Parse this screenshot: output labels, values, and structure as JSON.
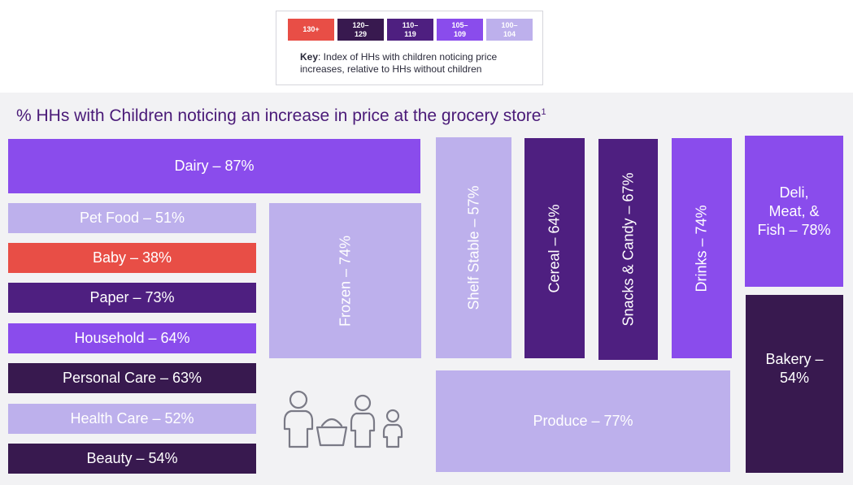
{
  "key": {
    "label": "Key",
    "description": ": Index of HHs with children noticing price increases, relative to HHs without children",
    "swatches": [
      {
        "label": "130+",
        "color": "#e84e46"
      },
      {
        "label": "120–\n129",
        "color": "#38194f"
      },
      {
        "label": "110–\n119",
        "color": "#4e1f80"
      },
      {
        "label": "105–\n109",
        "color": "#8a4cec"
      },
      {
        "label": "100–\n104",
        "color": "#bdb0ec"
      }
    ]
  },
  "chart_data": {
    "type": "treemap",
    "title": "% HHs with Children noticing an increase in price at the grocery store",
    "title_sup": "1",
    "unit": "%",
    "items": [
      {
        "name": "Dairy",
        "label": "Dairy – 87%",
        "value": 87,
        "index_band": "105–109",
        "color": "#8a4cec"
      },
      {
        "name": "Pet Food",
        "label": "Pet Food – 51%",
        "value": 51,
        "index_band": "100–104",
        "color": "#bdb0ec"
      },
      {
        "name": "Baby",
        "label": "Baby – 38%",
        "value": 38,
        "index_band": "130+",
        "color": "#e84e46"
      },
      {
        "name": "Paper",
        "label": "Paper – 73%",
        "value": 73,
        "index_band": "110–119",
        "color": "#4e1f80"
      },
      {
        "name": "Household",
        "label": "Household – 64%",
        "value": 64,
        "index_band": "105–109",
        "color": "#8a4cec"
      },
      {
        "name": "Personal Care",
        "label": "Personal Care – 63%",
        "value": 63,
        "index_band": "120–129",
        "color": "#38194f"
      },
      {
        "name": "Health Care",
        "label": "Health Care – 52%",
        "value": 52,
        "index_band": "100–104",
        "color": "#bdb0ec"
      },
      {
        "name": "Beauty",
        "label": "Beauty – 54%",
        "value": 54,
        "index_band": "120–129",
        "color": "#38194f"
      },
      {
        "name": "Frozen",
        "label": "Frozen – 74%",
        "value": 74,
        "index_band": "100–104",
        "color": "#bdb0ec"
      },
      {
        "name": "Shelf Stable",
        "label": "Shelf Stable – 57%",
        "value": 57,
        "index_band": "100–104",
        "color": "#bdb0ec"
      },
      {
        "name": "Cereal",
        "label": "Cereal – 64%",
        "value": 64,
        "index_band": "110–119",
        "color": "#4e1f80"
      },
      {
        "name": "Snacks & Candy",
        "label": "Snacks & Candy – 67%",
        "value": 67,
        "index_band": "110–119",
        "color": "#4e1f80"
      },
      {
        "name": "Drinks",
        "label": "Drinks – 74%",
        "value": 74,
        "index_band": "105–109",
        "color": "#8a4cec"
      },
      {
        "name": "Deli, Meat, & Fish",
        "label": "Deli,\nMeat, &\nFish – 78%",
        "value": 78,
        "index_band": "105–109",
        "color": "#8a4cec"
      },
      {
        "name": "Bakery",
        "label": "Bakery –\n54%",
        "value": 54,
        "index_band": "120–129",
        "color": "#38194f"
      },
      {
        "name": "Produce",
        "label": "Produce – 77%",
        "value": 77,
        "index_band": "100–104",
        "color": "#bdb0ec"
      }
    ]
  }
}
